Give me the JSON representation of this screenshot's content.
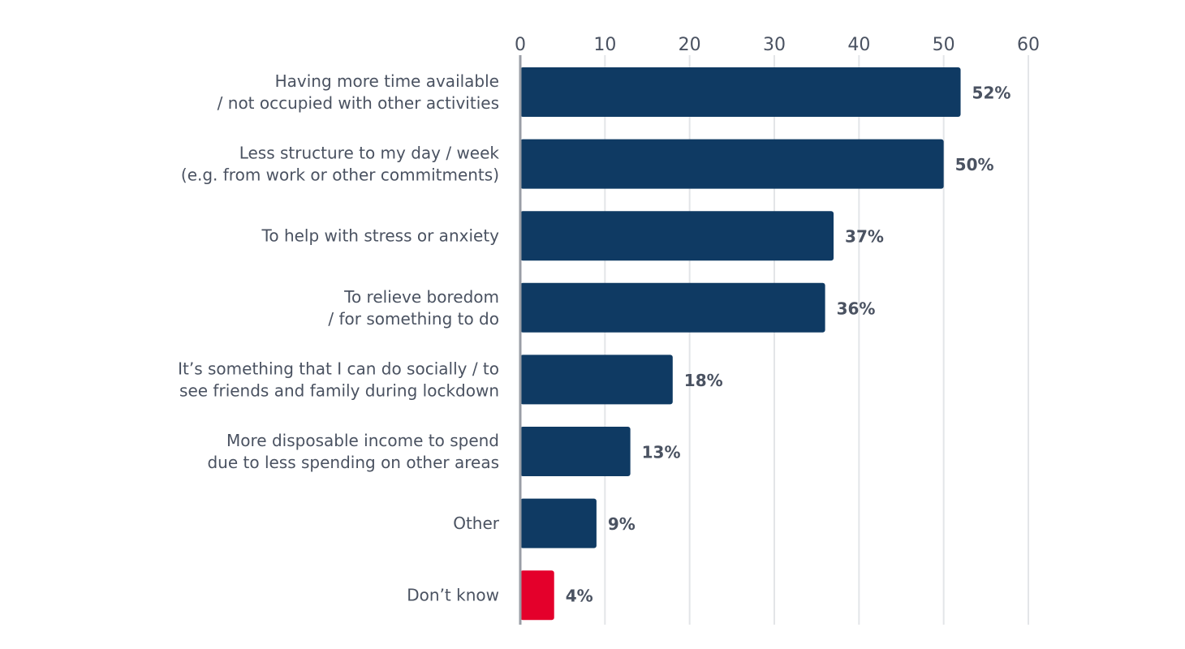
{
  "chart_data": {
    "type": "bar",
    "orientation": "horizontal",
    "title": "",
    "xlabel": "",
    "ylabel": "",
    "xlim": [
      0,
      60
    ],
    "x_ticks": [
      0,
      10,
      20,
      30,
      40,
      50,
      60
    ],
    "x_tick_labels": [
      "0",
      "10",
      "20",
      "30",
      "40",
      "50",
      "60"
    ],
    "x_axis_position": "top",
    "grid": true,
    "legend": null,
    "categories": [
      [
        "Having more time available",
        "/ not occupied with other activities"
      ],
      [
        "Less structure to my day / week",
        "(e.g. from work or other commitments)"
      ],
      [
        "To help with stress or anxiety"
      ],
      [
        "To relieve boredom",
        "/ for something to do"
      ],
      [
        "It’s something that I can do socially / to",
        "see friends and family during lockdown"
      ],
      [
        "More disposable income to spend",
        "due to less spending on other areas"
      ],
      [
        "Other"
      ],
      [
        "Don’t know"
      ]
    ],
    "values": [
      52,
      50,
      37,
      36,
      18,
      13,
      9,
      4
    ],
    "value_labels": [
      "52%",
      "50%",
      "37%",
      "36%",
      "18%",
      "13%",
      "9%",
      "4%"
    ],
    "bar_colors": [
      "#0f3a63",
      "#0f3a63",
      "#0f3a63",
      "#0f3a63",
      "#0f3a63",
      "#0f3a63",
      "#0f3a63",
      "#e4002b"
    ]
  }
}
